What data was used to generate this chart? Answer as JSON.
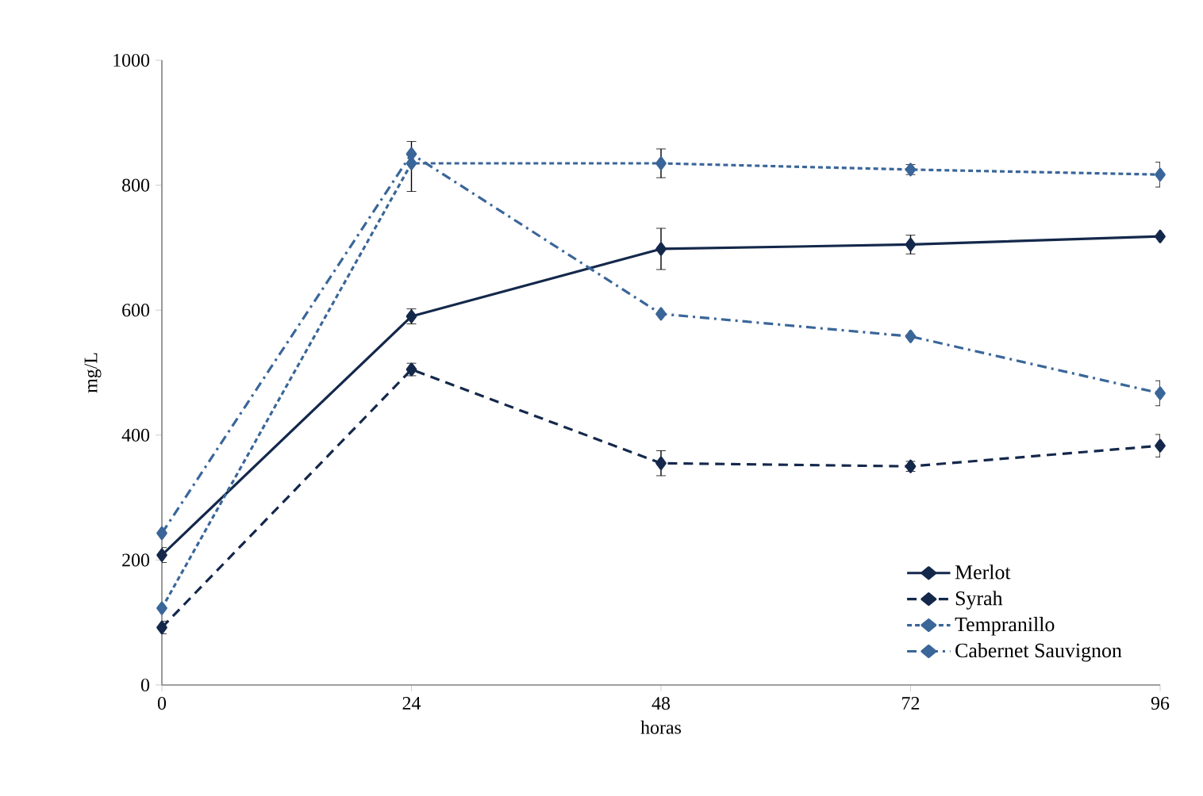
{
  "chart_data": {
    "type": "line",
    "xlabel": "horas",
    "ylabel": "mg/L",
    "x": [
      0,
      24,
      48,
      72,
      96
    ],
    "series": [
      {
        "name": "Merlot",
        "color": "#14284b",
        "line_style": "solid",
        "values": [
          208,
          590,
          698,
          705,
          718
        ],
        "errors": [
          12,
          12,
          33,
          15,
          null
        ]
      },
      {
        "name": "Syrah",
        "color": "#14284b",
        "line_style": "dashed",
        "values": [
          92,
          505,
          355,
          350,
          383
        ],
        "errors": [
          10,
          10,
          20,
          8,
          18
        ]
      },
      {
        "name": "Tempranillo",
        "color": "#3a6699",
        "line_style": "dotted",
        "values": [
          123,
          835,
          835,
          825,
          817
        ],
        "errors": [
          null,
          null,
          23,
          8,
          20
        ]
      },
      {
        "name": "Cabernet Sauvignon",
        "color": "#3a6699",
        "line_style": "dashdot",
        "values": [
          243,
          850,
          594,
          558,
          467
        ],
        "errors": [
          null,
          [
            790,
            870
          ],
          null,
          null,
          20
        ]
      }
    ],
    "xlim": [
      0,
      96
    ],
    "ylim": [
      0,
      1000
    ],
    "xticks": [
      0,
      24,
      48,
      72,
      96
    ],
    "yticks": [
      0,
      200,
      400,
      600,
      800,
      1000
    ],
    "marker": "diamond",
    "legend": "bottom right",
    "grid": false
  }
}
